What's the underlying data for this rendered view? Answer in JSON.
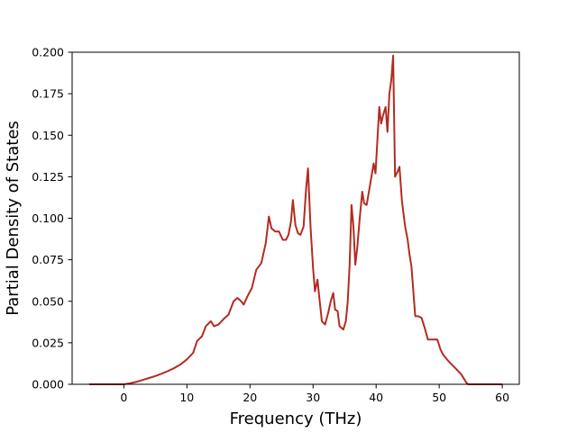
{
  "chart_data": {
    "type": "line",
    "title": "",
    "xlabel": "Frequency (THz)",
    "ylabel": "Partial Density of States",
    "xlim": [
      -8.2,
      62.7
    ],
    "ylim": [
      0.0,
      0.2
    ],
    "xticks": [
      0,
      10,
      20,
      30,
      40,
      50,
      60
    ],
    "yticks": [
      0.0,
      0.025,
      0.05,
      0.075,
      0.1,
      0.125,
      0.15,
      0.175,
      0.2
    ],
    "ytick_labels": [
      "0.000",
      "0.025",
      "0.050",
      "0.075",
      "0.100",
      "0.125",
      "0.150",
      "0.175",
      "0.200"
    ],
    "grid": false,
    "line_color": "#b22c22",
    "series": [
      {
        "x": [
          -5.5,
          0,
          1.0,
          2.0,
          3.0,
          4.0,
          5.0,
          6.0,
          7.0,
          8.0,
          9.0,
          10.0,
          11.0,
          11.6,
          12.4,
          13.0,
          13.8,
          14.3,
          15.0,
          16.0,
          16.6,
          17.4,
          18.0,
          18.6,
          19.0,
          19.6,
          20.3,
          21.0,
          21.8,
          22.5,
          23.0,
          23.4,
          24.0,
          24.6,
          25.2,
          25.7,
          26.1,
          26.5,
          26.8,
          27.2,
          27.6,
          28.0,
          28.5,
          28.9,
          29.2,
          29.6,
          30.0,
          30.3,
          30.7,
          31.0,
          31.4,
          31.9,
          32.4,
          32.8,
          33.2,
          33.5,
          33.9,
          34.2,
          34.8,
          35.2,
          35.5,
          35.8,
          36.1,
          36.4,
          36.7,
          37.0,
          37.4,
          37.8,
          38.1,
          38.5,
          38.9,
          39.3,
          39.6,
          39.9,
          40.2,
          40.5,
          40.8,
          41.1,
          41.5,
          41.8,
          42.1,
          42.4,
          42.7,
          43.0,
          43.4,
          43.7,
          44.1,
          44.6,
          45.0,
          45.3,
          45.6,
          46.2,
          46.7,
          47.2,
          47.7,
          48.2,
          49.0,
          49.7,
          50.2,
          50.6,
          51.0,
          51.7,
          52.5,
          53.5,
          54.3,
          54.6,
          55.0,
          60.0
        ],
        "y": [
          0.0,
          0.0,
          0.0006,
          0.0015,
          0.0026,
          0.0038,
          0.005,
          0.0064,
          0.008,
          0.0098,
          0.012,
          0.015,
          0.019,
          0.026,
          0.029,
          0.035,
          0.038,
          0.035,
          0.036,
          0.04,
          0.042,
          0.05,
          0.052,
          0.05,
          0.048,
          0.053,
          0.058,
          0.069,
          0.073,
          0.085,
          0.101,
          0.094,
          0.092,
          0.092,
          0.087,
          0.087,
          0.09,
          0.098,
          0.111,
          0.096,
          0.091,
          0.09,
          0.095,
          0.118,
          0.13,
          0.095,
          0.07,
          0.056,
          0.063,
          0.052,
          0.038,
          0.036,
          0.043,
          0.05,
          0.055,
          0.045,
          0.044,
          0.035,
          0.033,
          0.038,
          0.05,
          0.072,
          0.108,
          0.095,
          0.072,
          0.082,
          0.1,
          0.116,
          0.109,
          0.108,
          0.117,
          0.126,
          0.133,
          0.127,
          0.147,
          0.167,
          0.157,
          0.162,
          0.167,
          0.152,
          0.175,
          0.183,
          0.198,
          0.125,
          0.128,
          0.131,
          0.11,
          0.095,
          0.087,
          0.078,
          0.071,
          0.041,
          0.041,
          0.04,
          0.034,
          0.027,
          0.027,
          0.027,
          0.021,
          0.018,
          0.016,
          0.013,
          0.01,
          0.006,
          0.001,
          0.0,
          0.0,
          0.0
        ]
      }
    ]
  }
}
